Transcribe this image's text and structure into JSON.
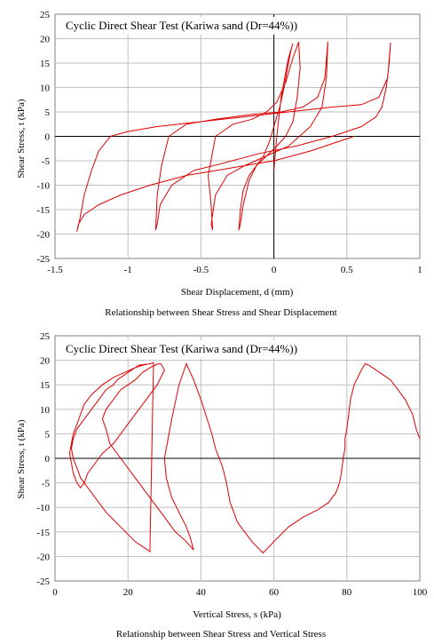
{
  "chart_data": [
    {
      "type": "line",
      "title": "Cyclic Direct Shear Test (Kariwa sand (Dr=44%))",
      "xlabel": "Shear Displacement, d (mm)",
      "ylabel": "Shear Stress, t (kPa)",
      "caption": "Relationship between Shear Stress and Shear Displacement",
      "xlim": [
        -1.5,
        1.0
      ],
      "ylim": [
        -25,
        25
      ],
      "xticks": [
        -1.5,
        -1,
        -0.5,
        0,
        0.5,
        1
      ],
      "xtick_labels": [
        "-1.5",
        "-1",
        "-0.5",
        "0",
        "0.5",
        "1"
      ],
      "yticks": [
        25,
        20,
        15,
        10,
        5,
        0,
        -5,
        -10,
        -15,
        -20,
        -25
      ],
      "ytick_labels": [
        "25",
        "20",
        "15",
        "10",
        "5",
        "0",
        "-5",
        "-10",
        "-15",
        "-20",
        "-25"
      ],
      "grid": true,
      "line_color": "#e00000",
      "series": [
        {
          "x": [
            0.0,
            0.02,
            0.05,
            0.08,
            0.1,
            0.12,
            0.13,
            0.12,
            0.1,
            0.07,
            0.04,
            0.0,
            -0.03,
            -0.07,
            -0.12,
            -0.17,
            -0.21,
            -0.23,
            -0.24,
            -0.23,
            -0.21,
            -0.17,
            -0.12,
            -0.05,
            0.02,
            0.08,
            0.13,
            0.16,
            0.18,
            0.17,
            0.13,
            0.08,
            0.02,
            -0.05,
            -0.15,
            -0.28,
            -0.4,
            -0.45,
            -0.43,
            -0.42,
            -0.43,
            -0.4,
            -0.32,
            -0.2,
            -0.05,
            0.1,
            0.25,
            0.33,
            0.36,
            0.37,
            0.35,
            0.3,
            0.2,
            0.05,
            -0.15,
            -0.4,
            -0.6,
            -0.72,
            -0.77,
            -0.8,
            -0.81,
            -0.8,
            -0.78,
            -0.7,
            -0.55,
            -0.35,
            -0.1,
            0.15,
            0.4,
            0.6,
            0.7,
            0.74,
            0.77,
            0.79,
            0.8,
            0.78,
            0.72,
            0.6,
            0.4,
            0.1,
            -0.2,
            -0.5,
            -0.8,
            -1.0,
            -1.12,
            -1.2,
            -1.25,
            -1.3,
            -1.33,
            -1.35,
            -1.34,
            -1.3,
            -1.2,
            -1.05,
            -0.85,
            -0.6,
            -0.3,
            0.0,
            0.25,
            0.45,
            0.55
          ],
          "y": [
            -7,
            0,
            8,
            13,
            16,
            18,
            19,
            18,
            15,
            10,
            6,
            2,
            -1,
            -4,
            -6,
            -8,
            -11,
            -15,
            -19.2,
            -18,
            -14,
            -9,
            -6,
            -4,
            -2,
            0,
            3,
            8,
            14,
            19.3,
            16,
            11,
            7,
            5,
            3.5,
            2.5,
            0,
            -8,
            -14,
            -19.2,
            -18,
            -12,
            -8,
            -6,
            -4,
            -2,
            2,
            6,
            12,
            19.4,
            12,
            8,
            6,
            5,
            4.5,
            3.5,
            2.5,
            0,
            -6,
            -12,
            -19.2,
            -18,
            -14,
            -10,
            -7,
            -5.5,
            -3.5,
            -2,
            0,
            2,
            4,
            6,
            10,
            15,
            19.2,
            12,
            8,
            6.5,
            6,
            5,
            4,
            3,
            2,
            1,
            0,
            -3,
            -7,
            -12,
            -17,
            -19.5,
            -18,
            -16,
            -14,
            -12,
            -10,
            -8,
            -6.5,
            -5,
            -3,
            -1,
            0
          ]
        }
      ]
    },
    {
      "type": "line",
      "title": "Cyclic Direct Shear Test (Kariwa sand (Dr=44%))",
      "xlabel": "Vertical Stress, s (kPa)",
      "ylabel": "Shear Stress, t (kPa)",
      "caption": "Relationship between Shear Stress and Vertical Stress",
      "xlim": [
        0,
        100
      ],
      "ylim": [
        -25,
        25
      ],
      "xticks": [
        0,
        20,
        40,
        60,
        80,
        100
      ],
      "xtick_labels": [
        "0",
        "20",
        "40",
        "60",
        "80",
        "100"
      ],
      "yticks": [
        25,
        20,
        15,
        10,
        5,
        0,
        -5,
        -10,
        -15,
        -20,
        -25
      ],
      "ytick_labels": [
        "25",
        "20",
        "15",
        "10",
        "5",
        "0",
        "-5",
        "-10",
        "-15",
        "-20",
        "-25"
      ],
      "grid": true,
      "line_color": "#e00000",
      "series": [
        {
          "x": [
            100,
            99,
            98,
            96,
            94,
            92,
            90,
            88,
            86,
            85,
            84,
            82,
            81,
            80.5,
            80,
            79.5,
            79.5,
            79,
            78.5,
            78,
            77,
            75,
            72,
            68,
            64,
            60,
            57,
            54,
            52,
            50,
            49,
            48,
            47.5,
            47,
            46,
            45,
            44,
            43,
            40,
            38,
            36,
            34,
            32,
            31,
            30,
            30.5,
            32,
            34,
            36,
            37,
            38,
            36,
            33,
            30,
            27,
            24,
            21,
            19,
            17,
            15,
            14,
            13,
            14,
            16,
            18,
            20,
            22,
            24,
            26,
            28,
            29,
            30,
            28,
            25,
            22,
            19,
            16,
            13,
            11,
            9,
            8,
            7,
            6,
            5,
            4.5,
            4,
            4.5,
            5,
            6,
            7,
            8,
            10,
            13,
            16,
            19,
            22,
            24,
            26,
            27,
            26,
            22,
            18,
            14,
            11,
            9,
            7,
            6,
            5,
            4.5,
            5,
            6,
            8,
            10,
            12,
            14,
            16,
            17,
            19,
            21,
            23,
            25
          ],
          "y": [
            4,
            6,
            9,
            12,
            14,
            16,
            17,
            18,
            19,
            19.3,
            18,
            15,
            12,
            9,
            6,
            4,
            2,
            0,
            -3,
            -5,
            -7,
            -9,
            -10.5,
            -12,
            -14,
            -17,
            -19.3,
            -17,
            -15,
            -13,
            -11,
            -9,
            -7,
            -5,
            -2,
            0,
            2,
            5,
            12,
            16,
            19.3,
            15,
            8,
            4,
            0,
            -4,
            -8,
            -11,
            -14,
            -16,
            -18.7,
            -17,
            -15,
            -12,
            -9,
            -6,
            -3,
            -1,
            1,
            3,
            6,
            8,
            10,
            12,
            14,
            15,
            16,
            17.5,
            18.5,
            19.2,
            19.3,
            18,
            15,
            12,
            9,
            6,
            3,
            1,
            -1,
            -3,
            -5,
            -6,
            -5,
            -3,
            -1,
            1,
            3,
            5,
            7,
            9,
            11,
            13,
            15,
            16.5,
            17.5,
            18.5,
            19,
            19.3,
            19.5,
            -19,
            -17,
            -14,
            -11,
            -8,
            -6,
            -4,
            -2,
            0,
            2,
            4,
            6,
            8,
            10,
            12,
            14,
            15,
            16,
            17,
            18,
            19,
            19.2
          ]
        }
      ]
    }
  ]
}
